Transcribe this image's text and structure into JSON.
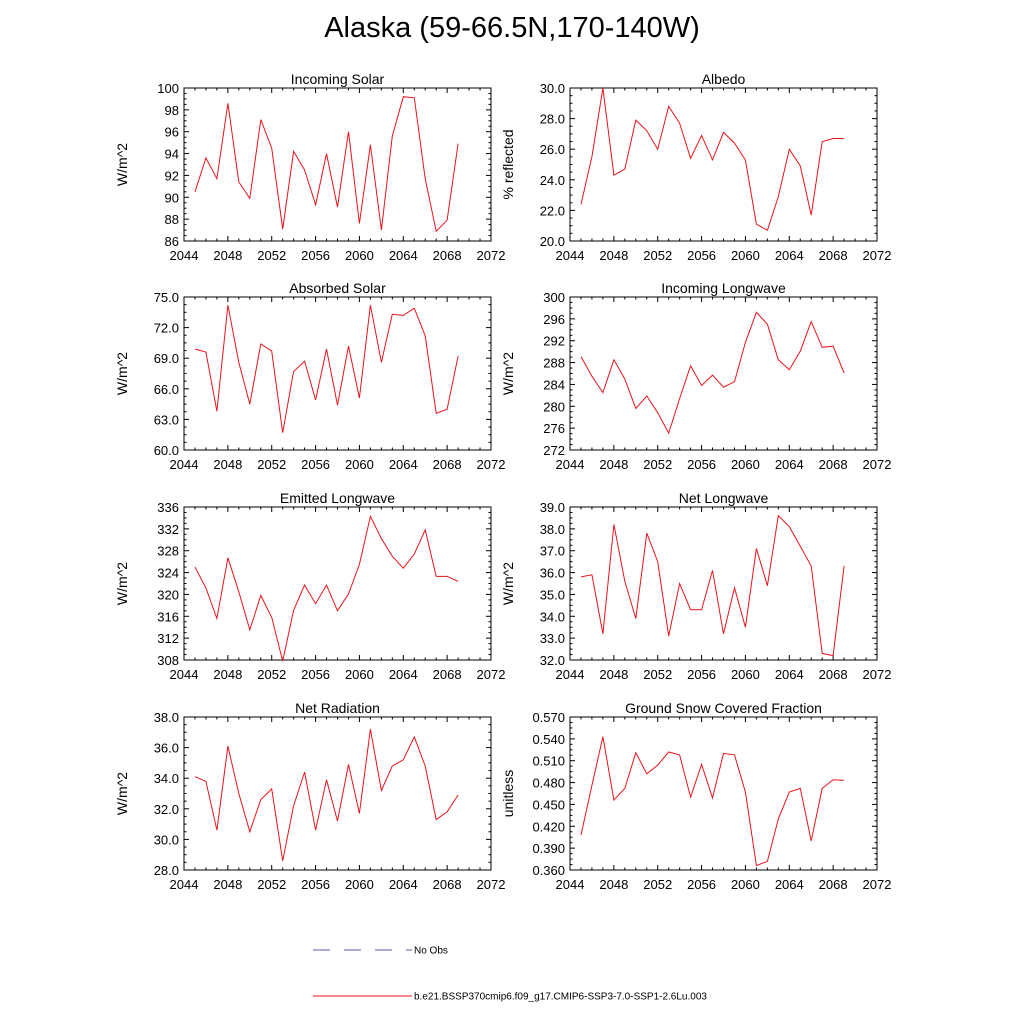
{
  "title": "Alaska (59-66.5N,170-140W)",
  "colors": {
    "series": "#e8141a",
    "obs": "#5a5aa8"
  },
  "legend": {
    "obs_label": "No Obs",
    "model_label": "b.e21.BSSP370cmip6.f09_g17.CMIP6-SSP3-7.0-SSP1-2.6Lu.003"
  },
  "chart_data": [
    {
      "type": "line",
      "title": "Incoming Solar",
      "ylabel": "W/m^2",
      "xlim": [
        2044,
        2072
      ],
      "xticks": [
        "2044",
        "2048",
        "2052",
        "2056",
        "2060",
        "2064",
        "2068",
        "2072"
      ],
      "ylim": [
        86,
        100
      ],
      "yticks": [
        "86",
        "88",
        "90",
        "92",
        "94",
        "96",
        "98",
        "100"
      ],
      "x": [
        2045,
        2046,
        2047,
        2048,
        2049,
        2050,
        2051,
        2052,
        2053,
        2054,
        2055,
        2056,
        2057,
        2058,
        2059,
        2060,
        2061,
        2062,
        2063,
        2064,
        2065,
        2066,
        2067,
        2068,
        2069
      ],
      "values": [
        90.5,
        93.6,
        91.7,
        98.6,
        91.4,
        89.9,
        97.1,
        94.5,
        87.1,
        94.2,
        92.5,
        89.3,
        94.0,
        89.1,
        96.0,
        87.6,
        94.8,
        87.0,
        95.6,
        99.2,
        99.1,
        91.7,
        86.9,
        87.9,
        94.9
      ]
    },
    {
      "type": "line",
      "title": "Albedo",
      "ylabel": "% reflected",
      "xlim": [
        2044,
        2072
      ],
      "xticks": [
        "2044",
        "2048",
        "2052",
        "2056",
        "2060",
        "2064",
        "2068",
        "2072"
      ],
      "ylim": [
        20,
        30
      ],
      "yticks": [
        "20.0",
        "22.0",
        "24.0",
        "26.0",
        "28.0",
        "30.0"
      ],
      "x": [
        2045,
        2046,
        2047,
        2048,
        2049,
        2050,
        2051,
        2052,
        2053,
        2054,
        2055,
        2056,
        2057,
        2058,
        2059,
        2060,
        2061,
        2062,
        2063,
        2064,
        2065,
        2066,
        2067,
        2068,
        2069
      ],
      "values": [
        22.4,
        25.5,
        30.0,
        24.3,
        24.7,
        27.9,
        27.2,
        26.0,
        28.8,
        27.7,
        25.4,
        26.9,
        25.3,
        27.1,
        26.4,
        25.3,
        21.1,
        20.7,
        22.9,
        26.0,
        24.9,
        21.7,
        26.5,
        26.7,
        26.7
      ]
    },
    {
      "type": "line",
      "title": "Absorbed Solar",
      "ylabel": "W/m^2",
      "xlim": [
        2044,
        2072
      ],
      "xticks": [
        "2044",
        "2048",
        "2052",
        "2056",
        "2060",
        "2064",
        "2068",
        "2072"
      ],
      "ylim": [
        60,
        75
      ],
      "yticks": [
        "60.0",
        "63.0",
        "66.0",
        "69.0",
        "72.0",
        "75.0"
      ],
      "x": [
        2045,
        2046,
        2047,
        2048,
        2049,
        2050,
        2051,
        2052,
        2053,
        2054,
        2055,
        2056,
        2057,
        2058,
        2059,
        2060,
        2061,
        2062,
        2063,
        2064,
        2065,
        2066,
        2067,
        2068,
        2069
      ],
      "values": [
        69.9,
        69.6,
        63.8,
        74.2,
        68.6,
        64.5,
        70.4,
        69.7,
        61.7,
        67.7,
        68.7,
        64.9,
        69.9,
        64.4,
        70.2,
        65.1,
        74.2,
        68.6,
        73.3,
        73.2,
        73.9,
        71.2,
        63.6,
        64.0,
        69.2
      ]
    },
    {
      "type": "line",
      "title": "Incoming Longwave",
      "ylabel": "W/m^2",
      "xlim": [
        2044,
        2072
      ],
      "xticks": [
        "2044",
        "2048",
        "2052",
        "2056",
        "2060",
        "2064",
        "2068",
        "2072"
      ],
      "ylim": [
        272,
        300
      ],
      "yticks": [
        "272",
        "276",
        "280",
        "284",
        "288",
        "292",
        "296",
        "300"
      ],
      "x": [
        2045,
        2046,
        2047,
        2048,
        2049,
        2050,
        2051,
        2052,
        2053,
        2054,
        2055,
        2056,
        2057,
        2058,
        2059,
        2060,
        2061,
        2062,
        2063,
        2064,
        2065,
        2066,
        2067,
        2068,
        2069
      ],
      "values": [
        289.1,
        285.5,
        282.5,
        288.5,
        285.0,
        279.6,
        281.9,
        278.8,
        275.1,
        281.4,
        287.4,
        283.8,
        285.7,
        283.5,
        284.5,
        291.7,
        297.2,
        295.0,
        288.5,
        286.7,
        290.1,
        295.5,
        290.8,
        291.0,
        286.1
      ]
    },
    {
      "type": "line",
      "title": "Emitted Longwave",
      "ylabel": "W/m^2",
      "xlim": [
        2044,
        2072
      ],
      "xticks": [
        "2044",
        "2048",
        "2052",
        "2056",
        "2060",
        "2064",
        "2068",
        "2072"
      ],
      "ylim": [
        308,
        336
      ],
      "yticks": [
        "308",
        "312",
        "316",
        "320",
        "324",
        "328",
        "332",
        "336"
      ],
      "x": [
        2045,
        2046,
        2047,
        2048,
        2049,
        2050,
        2051,
        2052,
        2053,
        2054,
        2055,
        2056,
        2057,
        2058,
        2059,
        2060,
        2061,
        2062,
        2063,
        2064,
        2065,
        2066,
        2067,
        2068,
        2069
      ],
      "values": [
        325.0,
        321.2,
        315.6,
        326.7,
        320.5,
        313.5,
        319.8,
        315.8,
        307.8,
        317.1,
        321.7,
        318.3,
        321.7,
        317.0,
        320.1,
        325.5,
        334.3,
        330.2,
        327.0,
        324.8,
        327.4,
        331.8,
        323.3,
        323.3,
        322.4
      ]
    },
    {
      "type": "line",
      "title": "Net Longwave",
      "ylabel": "W/m^2",
      "xlim": [
        2044,
        2072
      ],
      "xticks": [
        "2044",
        "2048",
        "2052",
        "2056",
        "2060",
        "2064",
        "2068",
        "2072"
      ],
      "ylim": [
        32,
        39
      ],
      "yticks": [
        "32.0",
        "33.0",
        "34.0",
        "35.0",
        "36.0",
        "37.0",
        "38.0",
        "39.0"
      ],
      "x": [
        2045,
        2046,
        2047,
        2048,
        2049,
        2050,
        2051,
        2052,
        2053,
        2054,
        2055,
        2056,
        2057,
        2058,
        2059,
        2060,
        2061,
        2062,
        2063,
        2064,
        2065,
        2066,
        2067,
        2068,
        2069
      ],
      "values": [
        35.8,
        35.9,
        33.2,
        38.2,
        35.6,
        33.9,
        37.8,
        36.5,
        33.1,
        35.5,
        34.3,
        34.3,
        36.1,
        33.2,
        35.3,
        33.5,
        37.1,
        35.4,
        38.6,
        38.1,
        37.2,
        36.3,
        32.3,
        32.2,
        36.3
      ]
    },
    {
      "type": "line",
      "title": "Net Radiation",
      "ylabel": "W/m^2",
      "xlim": [
        2044,
        2072
      ],
      "xticks": [
        "2044",
        "2048",
        "2052",
        "2056",
        "2060",
        "2064",
        "2068",
        "2072"
      ],
      "ylim": [
        28,
        38
      ],
      "yticks": [
        "28.0",
        "30.0",
        "32.0",
        "34.0",
        "36.0",
        "38.0"
      ],
      "x": [
        2045,
        2046,
        2047,
        2048,
        2049,
        2050,
        2051,
        2052,
        2053,
        2054,
        2055,
        2056,
        2057,
        2058,
        2059,
        2060,
        2061,
        2062,
        2063,
        2064,
        2065,
        2066,
        2067,
        2068,
        2069
      ],
      "values": [
        34.1,
        33.8,
        30.6,
        36.1,
        33.0,
        30.5,
        32.6,
        33.3,
        28.6,
        32.2,
        34.4,
        30.6,
        33.9,
        31.2,
        34.9,
        31.7,
        37.2,
        33.2,
        34.8,
        35.2,
        36.7,
        34.8,
        31.3,
        31.8,
        32.9
      ]
    },
    {
      "type": "line",
      "title": "Ground Snow Covered Fraction",
      "ylabel": "unitless",
      "xlim": [
        2044,
        2072
      ],
      "xticks": [
        "2044",
        "2048",
        "2052",
        "2056",
        "2060",
        "2064",
        "2068",
        "2072"
      ],
      "ylim": [
        0.36,
        0.57
      ],
      "yticks": [
        "0.360",
        "0.390",
        "0.420",
        "0.450",
        "0.480",
        "0.510",
        "0.540",
        "0.570"
      ],
      "x": [
        2045,
        2046,
        2047,
        2048,
        2049,
        2050,
        2051,
        2052,
        2053,
        2054,
        2055,
        2056,
        2057,
        2058,
        2059,
        2060,
        2061,
        2062,
        2063,
        2064,
        2065,
        2066,
        2067,
        2068,
        2069
      ],
      "values": [
        0.408,
        0.476,
        0.543,
        0.456,
        0.472,
        0.521,
        0.492,
        0.504,
        0.522,
        0.518,
        0.46,
        0.505,
        0.459,
        0.52,
        0.518,
        0.467,
        0.366,
        0.372,
        0.43,
        0.467,
        0.472,
        0.4,
        0.472,
        0.484,
        0.483
      ]
    }
  ]
}
